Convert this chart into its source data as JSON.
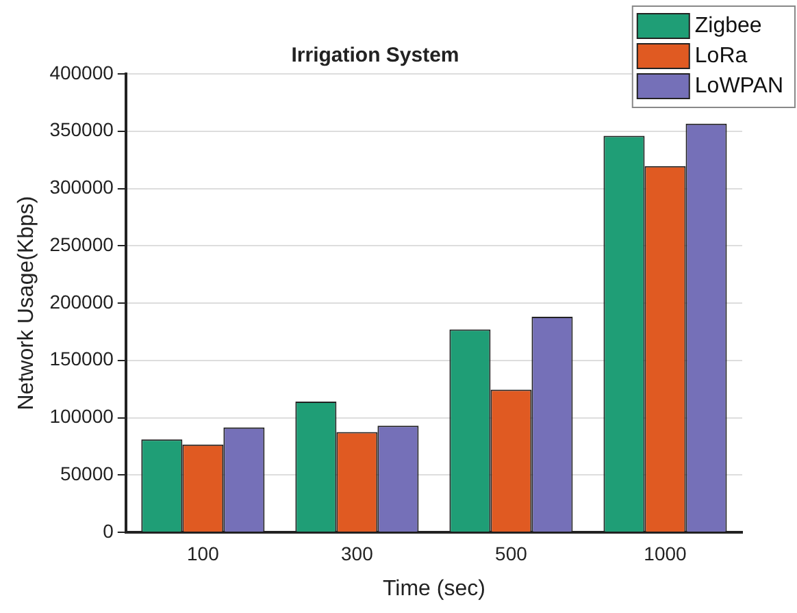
{
  "chart_data": {
    "type": "bar",
    "title": "Irrigation System",
    "xlabel": "Time (sec)",
    "ylabel": "Network Usage(Kbps)",
    "categories": [
      "100",
      "300",
      "500",
      "1000"
    ],
    "series": [
      {
        "name": "Zigbee",
        "color": "#1f9e76",
        "values": [
          81000,
          114000,
          177000,
          346000
        ]
      },
      {
        "name": "LoRa",
        "color": "#e05a22",
        "values": [
          76500,
          87500,
          124500,
          319500
        ]
      },
      {
        "name": "LoWPAN",
        "color": "#7570b8",
        "values": [
          91500,
          93000,
          188000,
          356500
        ]
      }
    ],
    "ylim": [
      0,
      400000
    ],
    "yticks": [
      0,
      50000,
      100000,
      150000,
      200000,
      250000,
      300000,
      350000,
      400000
    ],
    "grid": "y",
    "legend": "top right"
  }
}
